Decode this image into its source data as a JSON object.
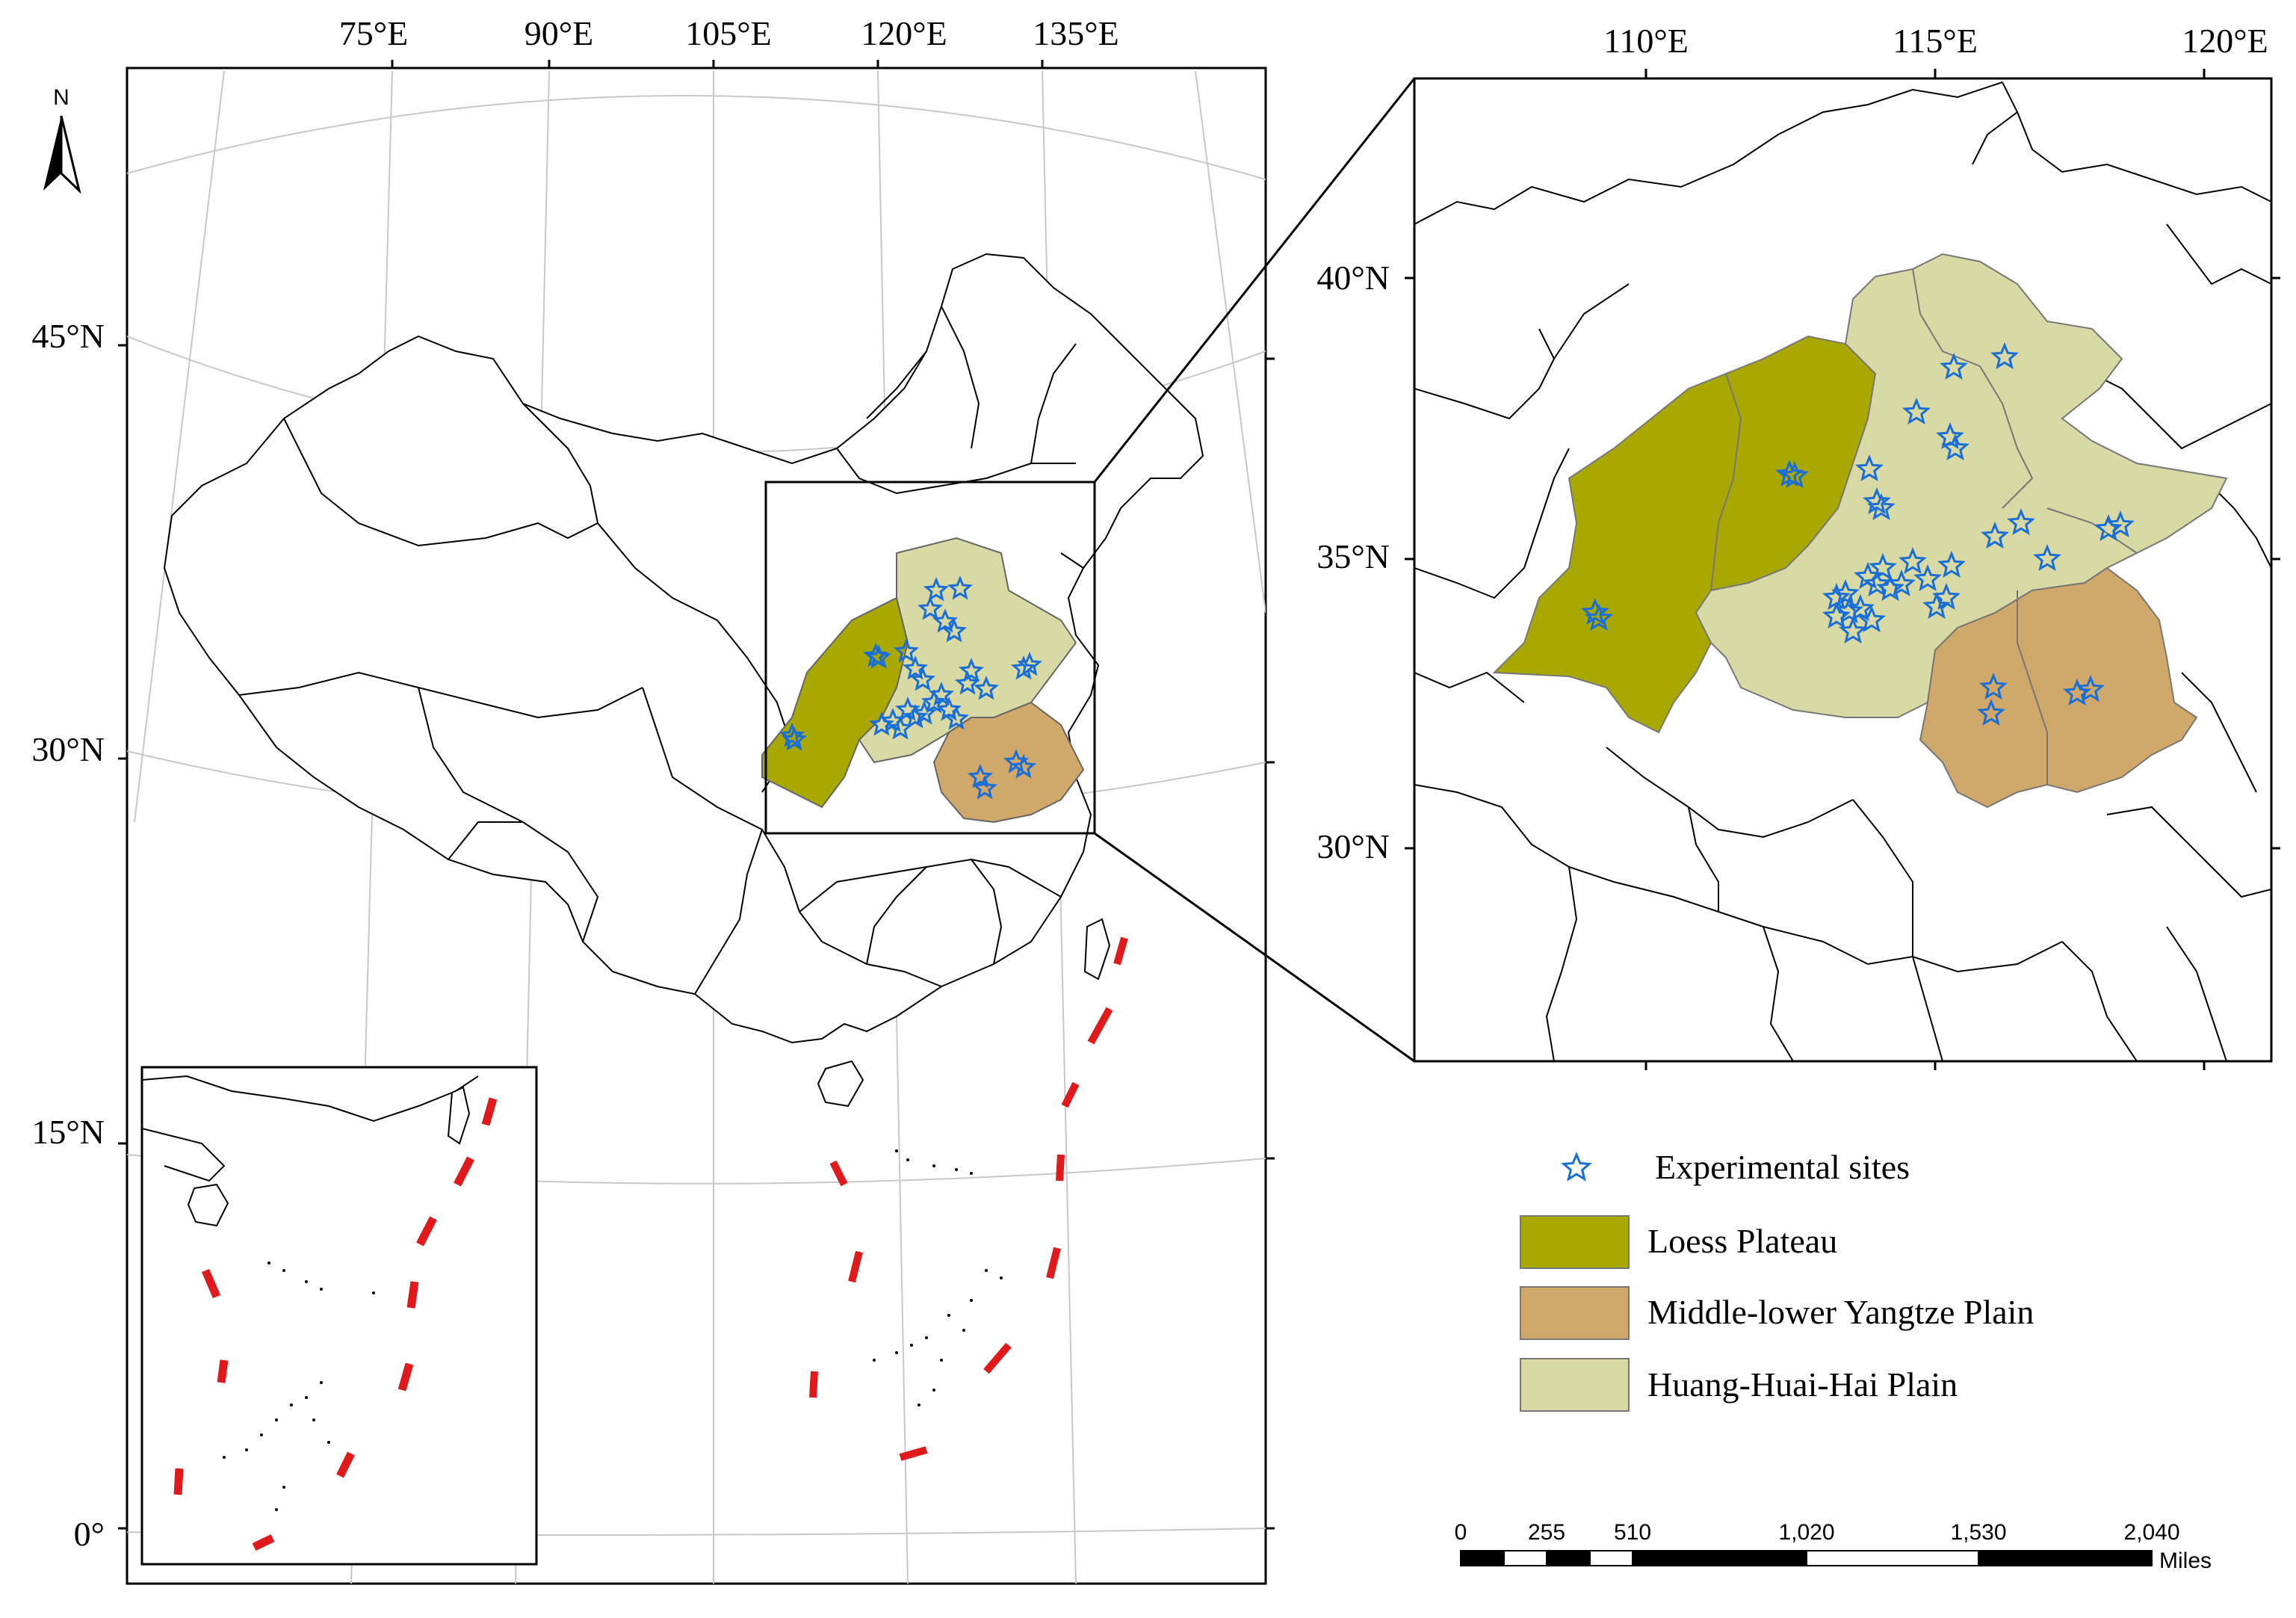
{
  "main_map": {
    "lon_labels": [
      "75°E",
      "90°E",
      "105°E",
      "120°E",
      "135°E"
    ],
    "lat_labels": [
      "45°N",
      "30°N",
      "15°N",
      "0°"
    ],
    "north_arrow_label": "N"
  },
  "zoom_map": {
    "lon_labels": [
      "110°E",
      "115°E",
      "120°E"
    ],
    "lat_labels": [
      "40°N",
      "35°N",
      "30°N"
    ]
  },
  "legend": {
    "items": [
      {
        "label": "Experimental sites",
        "symbol": "star",
        "color": "#1a6fd6"
      },
      {
        "label": "Loess Plateau",
        "symbol": "swatch",
        "color": "#a8a800"
      },
      {
        "label": "Middle-lower Yangtze Plain",
        "symbol": "swatch",
        "color": "#cfa86a"
      },
      {
        "label": "Huang-Huai-Hai Plain",
        "symbol": "swatch",
        "color": "#d8d9a4"
      }
    ]
  },
  "scale_bar": {
    "ticks": [
      "0",
      "255",
      "510",
      "1,020",
      "1,530",
      "2,040"
    ],
    "unit": "Miles"
  },
  "regions": [
    {
      "name": "Loess Plateau",
      "color": "#a8a800"
    },
    {
      "name": "Middle-lower Yangtze Plain",
      "color": "#cfa86a"
    },
    {
      "name": "Huang-Huai-Hai Plain",
      "color": "#d8d9a4"
    }
  ],
  "colors": {
    "site_star": "#1a6fd6",
    "nine_dash_line": "#e0191b",
    "graticule": "#c8c8c8",
    "boundary": "#000000"
  }
}
